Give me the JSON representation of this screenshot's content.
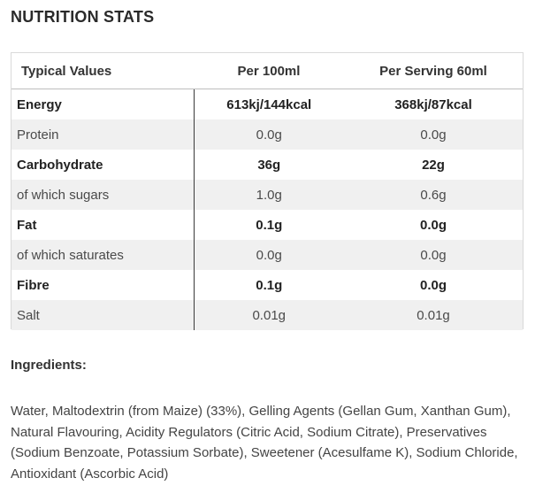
{
  "title": "NUTRITION STATS",
  "table": {
    "headers": [
      "Typical Values",
      "Per 100ml",
      "Per Serving 60ml"
    ],
    "rows": [
      {
        "label": "Energy",
        "per100": "613kj/144kcal",
        "perServing": "368kj/87kcal",
        "bold": true
      },
      {
        "label": "Protein",
        "per100": "0.0g",
        "perServing": "0.0g",
        "bold": false
      },
      {
        "label": "Carbohydrate",
        "per100": "36g",
        "perServing": "22g",
        "bold": true
      },
      {
        "label": "of which sugars",
        "per100": "1.0g",
        "perServing": "0.6g",
        "bold": false
      },
      {
        "label": "Fat",
        "per100": "0.1g",
        "perServing": "0.0g",
        "bold": true
      },
      {
        "label": "of which saturates",
        "per100": "0.0g",
        "perServing": "0.0g",
        "bold": false
      },
      {
        "label": "Fibre",
        "per100": "0.1g",
        "perServing": "0.0g",
        "bold": true
      },
      {
        "label": "Salt",
        "per100": "0.01g",
        "perServing": "0.01g",
        "bold": false
      }
    ]
  },
  "ingredients": {
    "heading": "Ingredients:",
    "text": "Water, Maltodextrin (from Maize) (33%), Gelling Agents (Gellan Gum, Xanthan Gum), Natural Flavouring, Acidity Regulators (Citric Acid, Sodium Citrate), Preservatives (Sodium Benzoate, Potassium Sorbate), Sweetener (Acesulfame K), Sodium Chloride, Antioxidant (Ascorbic Acid)"
  }
}
